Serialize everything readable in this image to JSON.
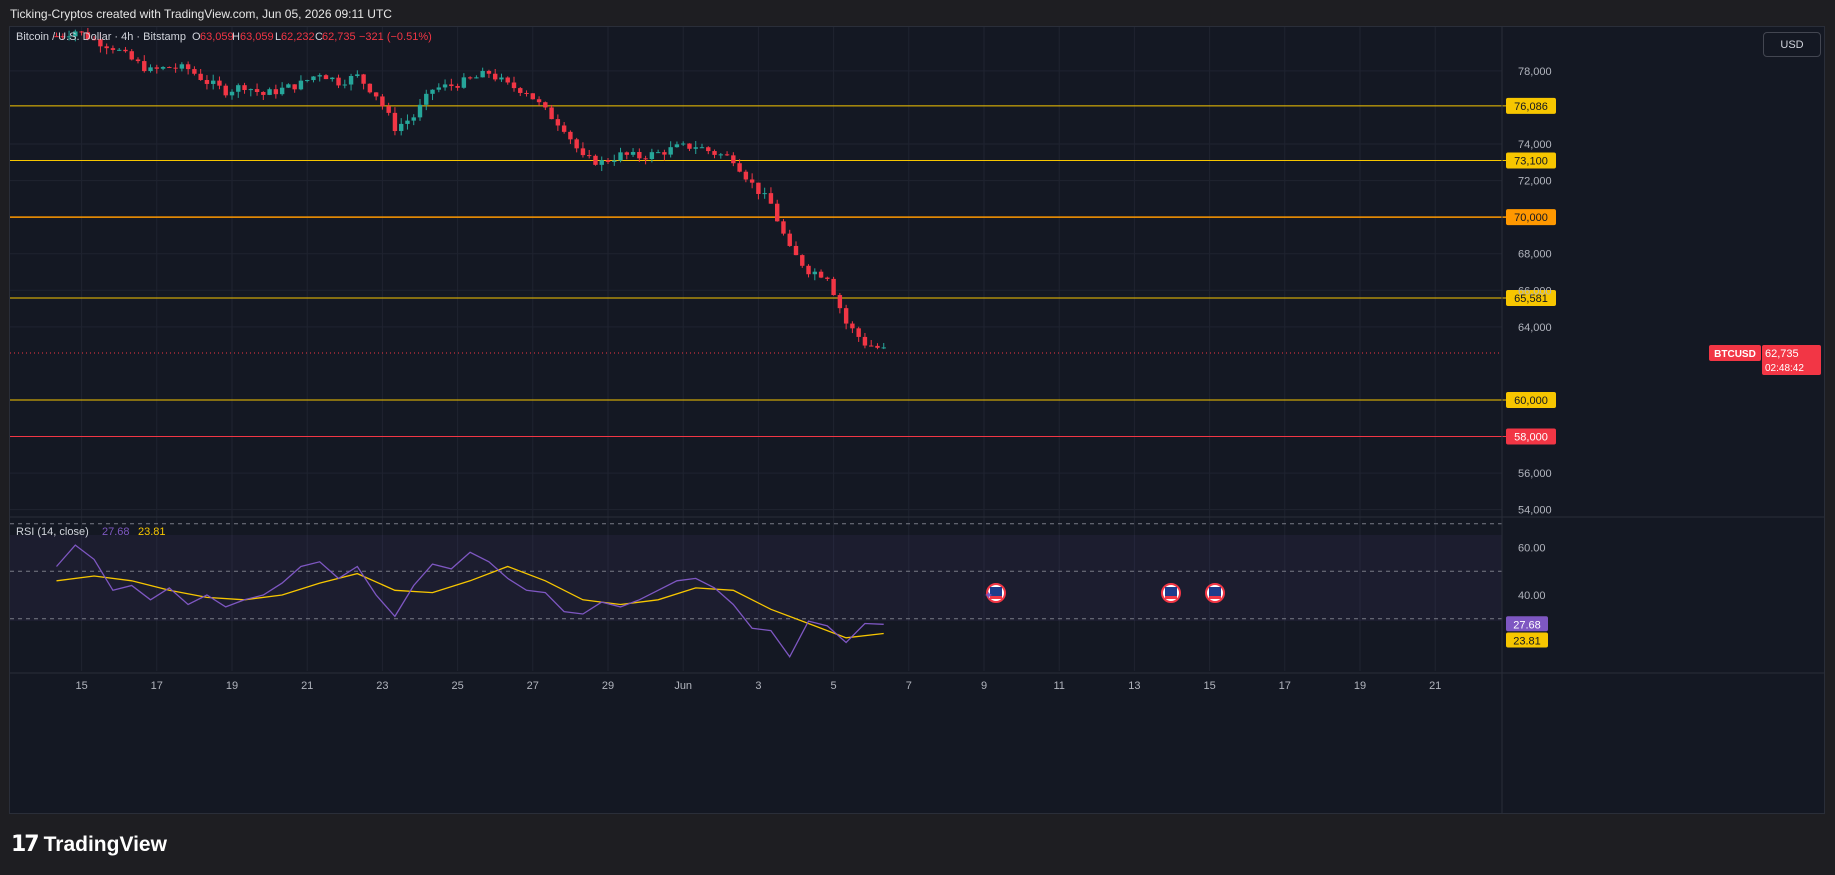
{
  "header": {
    "caption": "Ticking-Cryptos created with TradingView.com, Jun 05, 2026 09:11 UTC"
  },
  "legend": {
    "symbol": "Bitcoin / U.S. Dollar · 4h · Bitstamp",
    "o_label": "O",
    "o_value": "63,059",
    "h_label": "H",
    "h_value": "63,059",
    "l_label": "L",
    "l_value": "62,232",
    "c_label": "C",
    "c_value": "62,735",
    "change": "−321 (−0.51%)"
  },
  "currency_button": "USD",
  "price_tag": {
    "symbol": "BTCUSD",
    "price": "62,735",
    "countdown": "02:48:42"
  },
  "rsi_legend": {
    "label": "RSI (14, close)",
    "rsi": "27.68",
    "ma": "23.81"
  },
  "brand": {
    "mark": "17",
    "name": "TradingView"
  },
  "colors": {
    "up": "#26a69a",
    "down": "#f23645",
    "level": "#f7c600",
    "level_70k": "#ff9800",
    "level_58k": "#f23645",
    "rsi": "#7e57c2",
    "rsi_ma": "#f7c600",
    "background": "#141823"
  },
  "chart_data": [
    {
      "type": "candlestick",
      "title": "Bitcoin / U.S. Dollar · 4h · Bitstamp",
      "ylim": [
        53600,
        80400
      ],
      "yticks": [
        "78,000",
        "74,000",
        "72,000",
        "68,000",
        "66,000",
        "64,000",
        "56,000",
        "54,000"
      ],
      "xticks": [
        "15",
        "17",
        "19",
        "21",
        "23",
        "25",
        "27",
        "29",
        "Jun",
        "3",
        "5",
        "7",
        "9",
        "11",
        "13",
        "15",
        "17",
        "19",
        "21"
      ],
      "x_start": "2026-05-14",
      "x_end": "2026-06-22",
      "levels": [
        {
          "value": 76086,
          "label": "76,086"
        },
        {
          "value": 73100,
          "label": "73,100"
        },
        {
          "value": 70000,
          "label": "70,000"
        },
        {
          "value": 65581,
          "label": "65,581"
        },
        {
          "value": 60000,
          "label": "60,000"
        },
        {
          "value": 58000,
          "label": "58,000"
        }
      ],
      "last_price": 62735,
      "close_series": [
        {
          "x": "2026-05-14T08:00",
          "y": 79900
        },
        {
          "x": "2026-05-14T20:00",
          "y": 80200
        },
        {
          "x": "2026-05-15T08:00",
          "y": 79700
        },
        {
          "x": "2026-05-15T20:00",
          "y": 79300
        },
        {
          "x": "2026-05-16T08:00",
          "y": 78600
        },
        {
          "x": "2026-05-16T20:00",
          "y": 78000
        },
        {
          "x": "2026-05-17T08:00",
          "y": 78200
        },
        {
          "x": "2026-05-17T20:00",
          "y": 78100
        },
        {
          "x": "2026-05-18T08:00",
          "y": 77400
        },
        {
          "x": "2026-05-18T20:00",
          "y": 76900
        },
        {
          "x": "2026-05-19T08:00",
          "y": 77200
        },
        {
          "x": "2026-05-19T20:00",
          "y": 76700
        },
        {
          "x": "2026-05-20T08:00",
          "y": 77000
        },
        {
          "x": "2026-05-20T20:00",
          "y": 77300
        },
        {
          "x": "2026-05-21T08:00",
          "y": 77900
        },
        {
          "x": "2026-05-21T20:00",
          "y": 77400
        },
        {
          "x": "2026-05-22T08:00",
          "y": 77700
        },
        {
          "x": "2026-05-22T20:00",
          "y": 76700
        },
        {
          "x": "2026-05-23T08:00",
          "y": 74900
        },
        {
          "x": "2026-05-23T20:00",
          "y": 75500
        },
        {
          "x": "2026-05-24T08:00",
          "y": 77000
        },
        {
          "x": "2026-05-24T20:00",
          "y": 77200
        },
        {
          "x": "2026-05-25T08:00",
          "y": 77500
        },
        {
          "x": "2026-05-25T20:00",
          "y": 77900
        },
        {
          "x": "2026-05-26T08:00",
          "y": 77200
        },
        {
          "x": "2026-05-26T20:00",
          "y": 76900
        },
        {
          "x": "2026-05-27T08:00",
          "y": 75800
        },
        {
          "x": "2026-05-27T20:00",
          "y": 74900
        },
        {
          "x": "2026-05-28T08:00",
          "y": 73200
        },
        {
          "x": "2026-05-28T20:00",
          "y": 73000
        },
        {
          "x": "2026-05-29T08:00",
          "y": 73400
        },
        {
          "x": "2026-05-29T20:00",
          "y": 73300
        },
        {
          "x": "2026-05-30T08:00",
          "y": 73500
        },
        {
          "x": "2026-05-30T20:00",
          "y": 73800
        },
        {
          "x": "2026-05-31T08:00",
          "y": 73900
        },
        {
          "x": "2026-05-31T20:00",
          "y": 73500
        },
        {
          "x": "2026-06-01T08:00",
          "y": 73200
        },
        {
          "x": "2026-06-01T20:00",
          "y": 71800
        },
        {
          "x": "2026-06-02T08:00",
          "y": 70700
        },
        {
          "x": "2026-06-02T20:00",
          "y": 68200
        },
        {
          "x": "2026-06-03T08:00",
          "y": 67100
        },
        {
          "x": "2026-06-03T20:00",
          "y": 66800
        },
        {
          "x": "2026-06-04T08:00",
          "y": 64200
        },
        {
          "x": "2026-06-04T20:00",
          "y": 63100
        },
        {
          "x": "2026-06-05T08:00",
          "y": 62735
        }
      ]
    },
    {
      "type": "line",
      "title": "RSI (14, close)",
      "ylim": [
        8,
        72
      ],
      "yticks": [
        "60.00",
        "40.00"
      ],
      "bands": [
        70,
        50,
        30
      ],
      "series": [
        {
          "name": "RSI",
          "values": [
            {
              "x": "2026-05-14T08:00",
              "y": 52
            },
            {
              "x": "2026-05-14T20:00",
              "y": 61
            },
            {
              "x": "2026-05-15T08:00",
              "y": 55
            },
            {
              "x": "2026-05-15T20:00",
              "y": 42
            },
            {
              "x": "2026-05-16T08:00",
              "y": 44
            },
            {
              "x": "2026-05-16T20:00",
              "y": 38
            },
            {
              "x": "2026-05-17T08:00",
              "y": 43
            },
            {
              "x": "2026-05-17T20:00",
              "y": 36
            },
            {
              "x": "2026-05-18T08:00",
              "y": 40
            },
            {
              "x": "2026-05-18T20:00",
              "y": 35
            },
            {
              "x": "2026-05-19T08:00",
              "y": 38
            },
            {
              "x": "2026-05-19T20:00",
              "y": 40
            },
            {
              "x": "2026-05-20T08:00",
              "y": 45
            },
            {
              "x": "2026-05-20T20:00",
              "y": 52
            },
            {
              "x": "2026-05-21T08:00",
              "y": 54
            },
            {
              "x": "2026-05-21T20:00",
              "y": 47
            },
            {
              "x": "2026-05-22T08:00",
              "y": 52
            },
            {
              "x": "2026-05-22T20:00",
              "y": 40
            },
            {
              "x": "2026-05-23T08:00",
              "y": 31
            },
            {
              "x": "2026-05-23T20:00",
              "y": 44
            },
            {
              "x": "2026-05-24T08:00",
              "y": 53
            },
            {
              "x": "2026-05-24T20:00",
              "y": 51
            },
            {
              "x": "2026-05-25T08:00",
              "y": 58
            },
            {
              "x": "2026-05-25T20:00",
              "y": 54
            },
            {
              "x": "2026-05-26T08:00",
              "y": 47
            },
            {
              "x": "2026-05-26T20:00",
              "y": 42
            },
            {
              "x": "2026-05-27T08:00",
              "y": 41
            },
            {
              "x": "2026-05-27T20:00",
              "y": 33
            },
            {
              "x": "2026-05-28T08:00",
              "y": 32
            },
            {
              "x": "2026-05-28T20:00",
              "y": 37
            },
            {
              "x": "2026-05-29T08:00",
              "y": 35
            },
            {
              "x": "2026-05-29T20:00",
              "y": 38
            },
            {
              "x": "2026-05-30T08:00",
              "y": 42
            },
            {
              "x": "2026-05-30T20:00",
              "y": 46
            },
            {
              "x": "2026-05-31T08:00",
              "y": 47
            },
            {
              "x": "2026-05-31T20:00",
              "y": 43
            },
            {
              "x": "2026-06-01T08:00",
              "y": 36
            },
            {
              "x": "2026-06-01T20:00",
              "y": 26
            },
            {
              "x": "2026-06-02T08:00",
              "y": 25
            },
            {
              "x": "2026-06-02T20:00",
              "y": 14
            },
            {
              "x": "2026-06-03T08:00",
              "y": 29
            },
            {
              "x": "2026-06-03T20:00",
              "y": 27
            },
            {
              "x": "2026-06-04T08:00",
              "y": 20
            },
            {
              "x": "2026-06-04T20:00",
              "y": 28
            },
            {
              "x": "2026-06-05T08:00",
              "y": 27.68
            }
          ]
        },
        {
          "name": "RSI-based MA",
          "values": [
            {
              "x": "2026-05-14T08:00",
              "y": 46
            },
            {
              "x": "2026-05-15T08:00",
              "y": 48
            },
            {
              "x": "2026-05-16T08:00",
              "y": 46
            },
            {
              "x": "2026-05-17T08:00",
              "y": 42
            },
            {
              "x": "2026-05-18T08:00",
              "y": 39
            },
            {
              "x": "2026-05-19T08:00",
              "y": 38
            },
            {
              "x": "2026-05-20T08:00",
              "y": 40
            },
            {
              "x": "2026-05-21T08:00",
              "y": 45
            },
            {
              "x": "2026-05-22T08:00",
              "y": 49
            },
            {
              "x": "2026-05-23T08:00",
              "y": 42
            },
            {
              "x": "2026-05-24T08:00",
              "y": 41
            },
            {
              "x": "2026-05-25T08:00",
              "y": 46
            },
            {
              "x": "2026-05-26T08:00",
              "y": 52
            },
            {
              "x": "2026-05-27T08:00",
              "y": 46
            },
            {
              "x": "2026-05-28T08:00",
              "y": 38
            },
            {
              "x": "2026-05-29T08:00",
              "y": 36
            },
            {
              "x": "2026-05-30T08:00",
              "y": 38
            },
            {
              "x": "2026-05-31T08:00",
              "y": 43
            },
            {
              "x": "2026-06-01T08:00",
              "y": 42
            },
            {
              "x": "2026-06-02T08:00",
              "y": 34
            },
            {
              "x": "2026-06-03T08:00",
              "y": 28
            },
            {
              "x": "2026-06-04T08:00",
              "y": 22
            },
            {
              "x": "2026-06-05T08:00",
              "y": 23.81
            }
          ]
        }
      ]
    }
  ]
}
